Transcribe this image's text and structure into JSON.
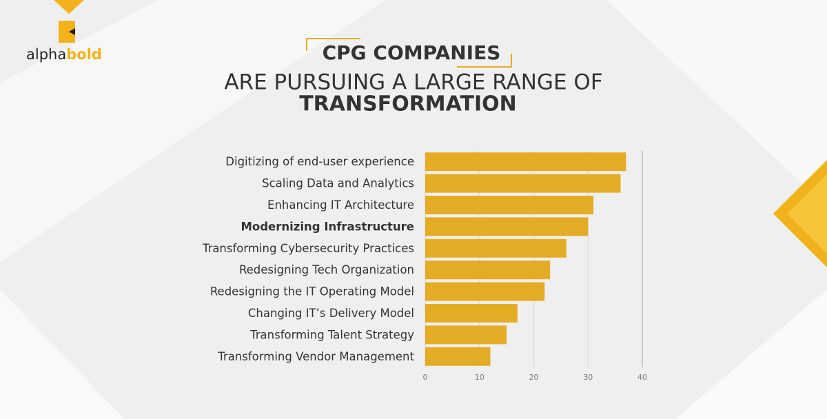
{
  "logo": {
    "word_1": "alpha",
    "word_2": "bold"
  },
  "chart_data": {
    "type": "bar",
    "orientation": "horizontal",
    "title": [
      "CPG COMPANIES",
      "ARE PURSUING A LARGE RANGE OF",
      "TRANSFORMATION"
    ],
    "categories": [
      "Digitizing of end-user experience",
      "Scaling Data and Analytics",
      "Enhancing IT Architecture",
      "Modernizing Infrastructure",
      "Transforming Cybersecurity Practices",
      "Redesigning Tech Organization",
      "Redesigning the IT Operating Model",
      "Changing IT’s Delivery Model",
      "Transforming Talent Strategy",
      "Transforming Vendor Management"
    ],
    "values": [
      37,
      36,
      31,
      30,
      26,
      23,
      22,
      17,
      15,
      12
    ],
    "color": "#e3ac24",
    "highlight_index": 3,
    "xlim": [
      0,
      40
    ],
    "xticks": [
      0,
      10,
      20,
      30,
      40
    ],
    "grid": true
  }
}
